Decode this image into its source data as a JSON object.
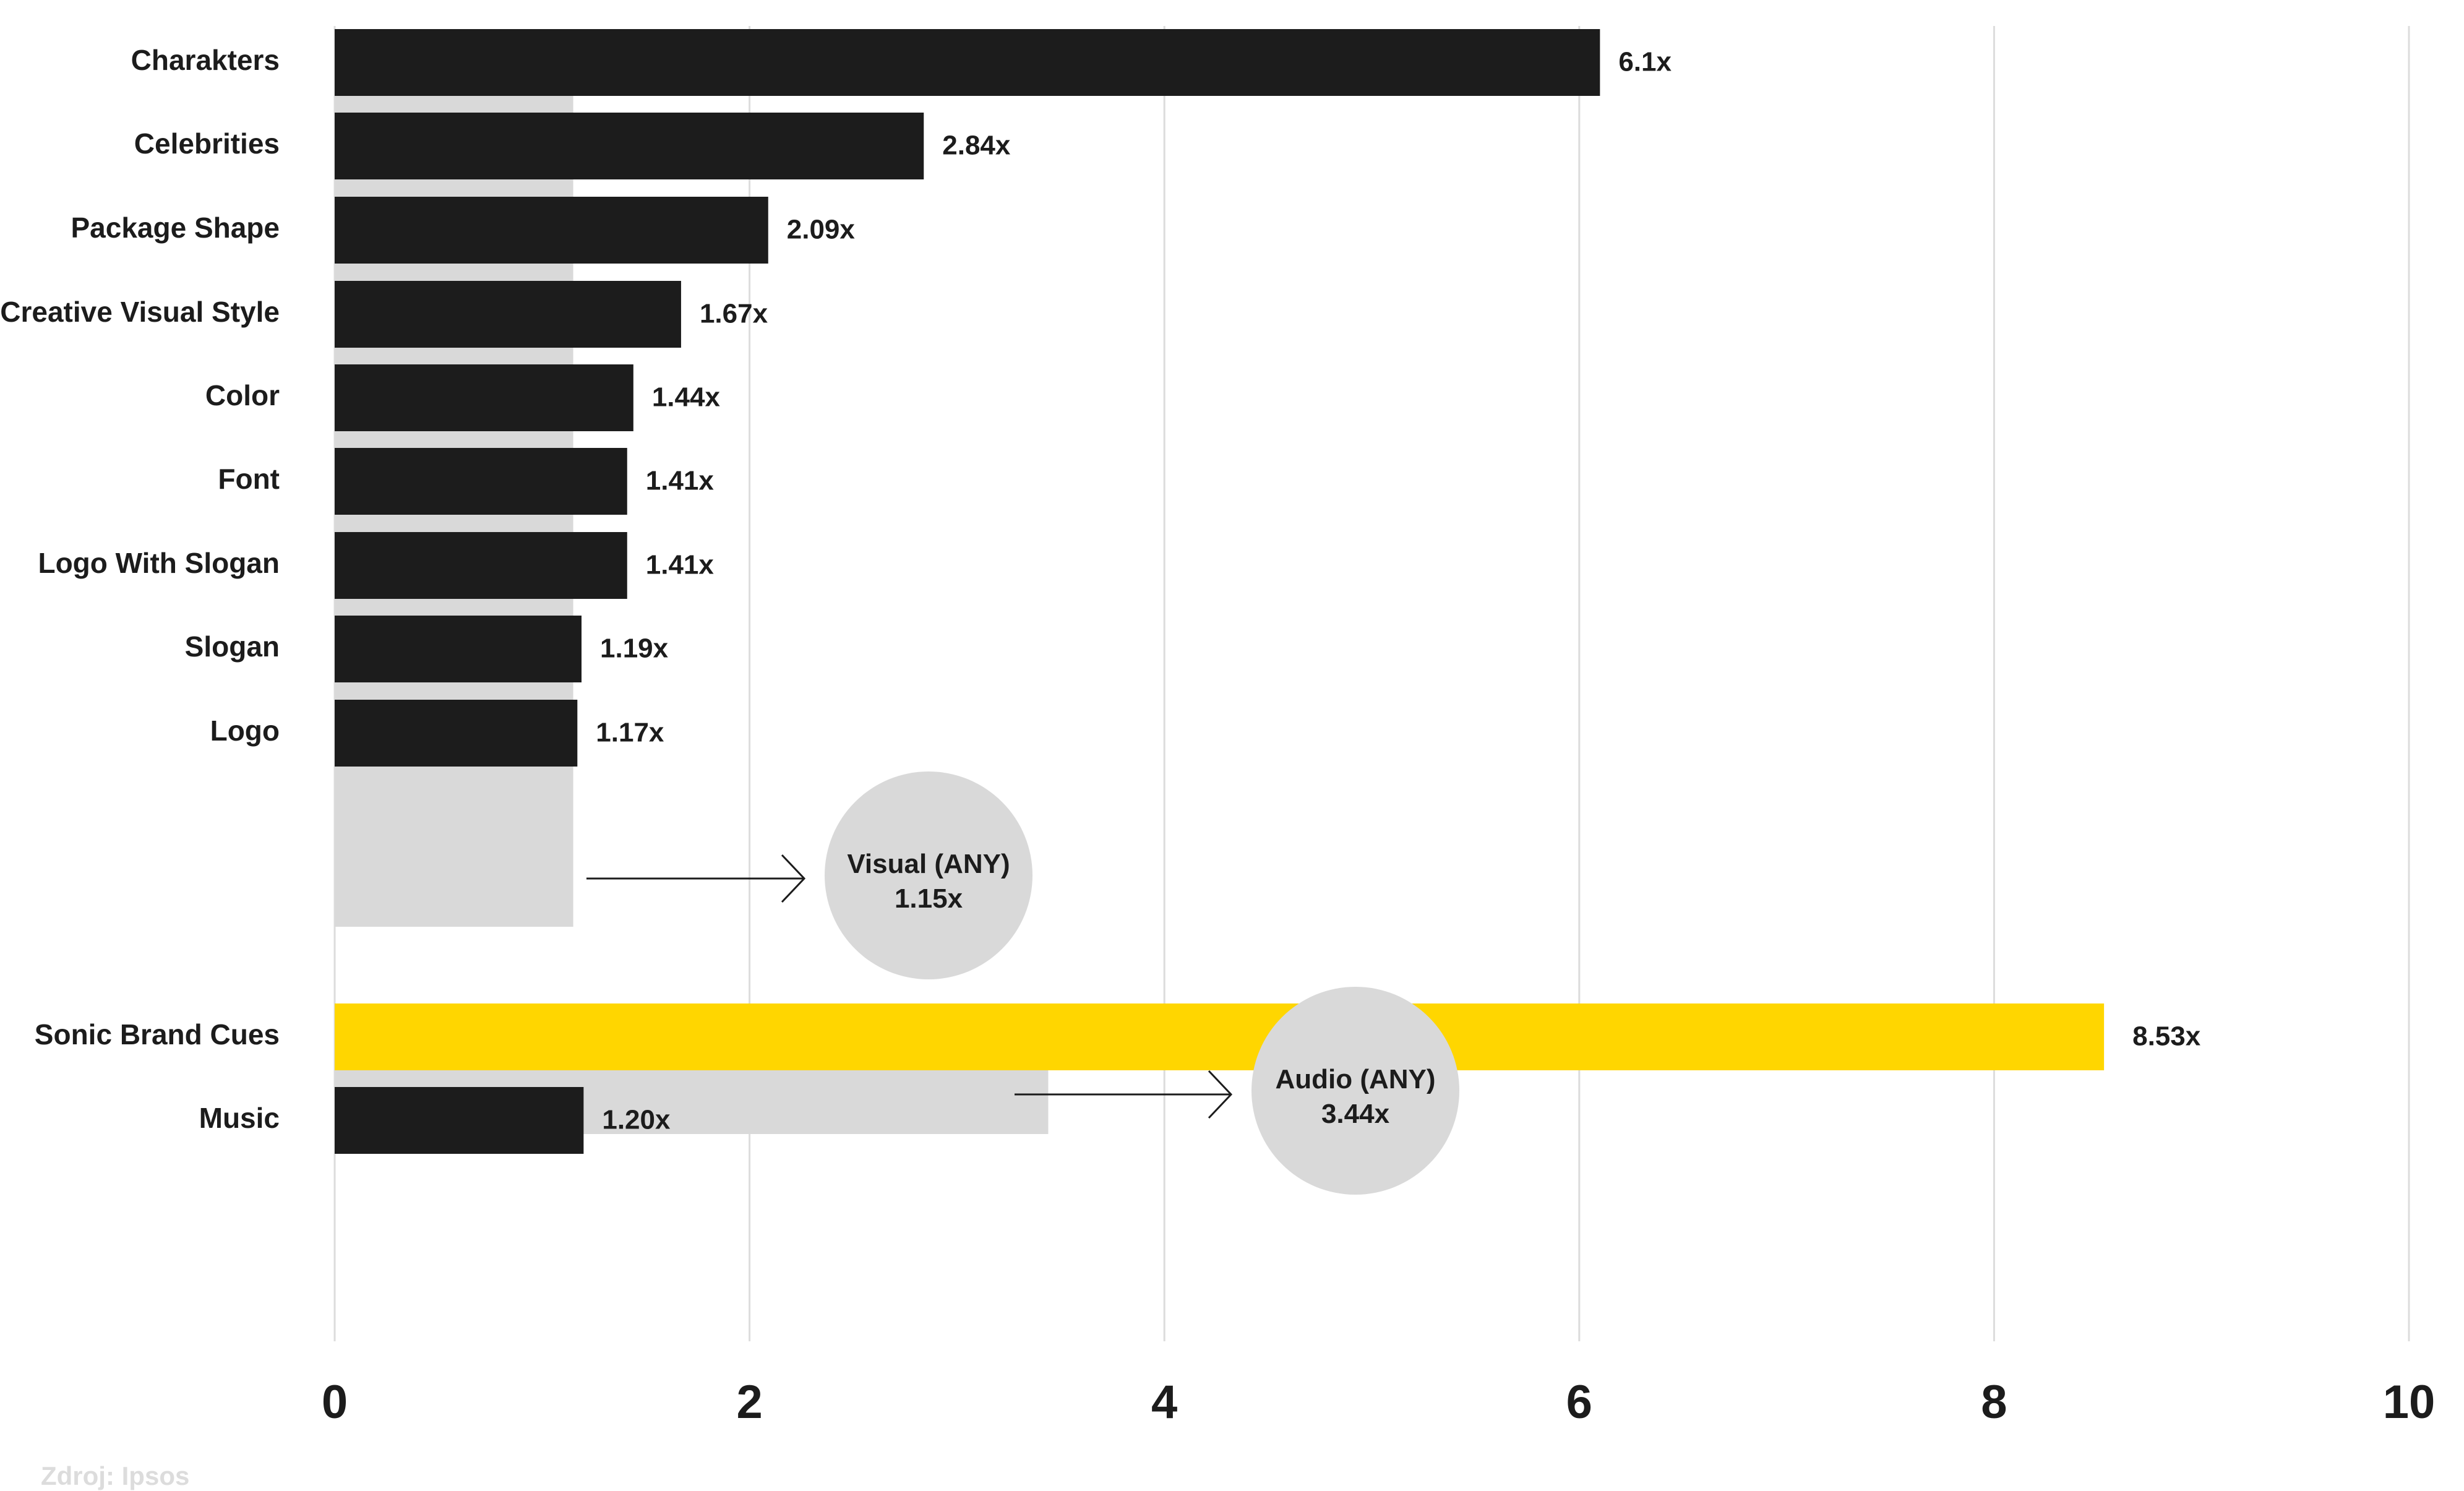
{
  "chart_data": {
    "type": "bar",
    "orientation": "horizontal",
    "xlim": [
      0,
      10
    ],
    "x_ticks": [
      "0",
      "2",
      "4",
      "6",
      "8",
      "10"
    ],
    "grid": true,
    "categories": [
      "Charakters",
      "Celebrities",
      "Package Shape",
      "Creative Visual Style",
      "Color",
      "Font",
      "Logo With Slogan",
      "Slogan",
      "Logo",
      "Sonic Brand Cues",
      "Music"
    ],
    "values": [
      6.1,
      2.84,
      2.09,
      1.67,
      1.44,
      1.41,
      1.41,
      1.19,
      1.17,
      8.53,
      1.2
    ],
    "value_labels": [
      "6.1x",
      "2.84x",
      "2.09x",
      "1.67x",
      "1.44x",
      "1.41x",
      "1.41x",
      "1.19x",
      "1.17x",
      "8.53x",
      "1.20x"
    ],
    "highlight_category": "Sonic Brand Cues",
    "groups": [
      {
        "label": "Visual (ANY)",
        "value": 1.15,
        "value_label": "1.15x",
        "categories": [
          "Charakters",
          "Celebrities",
          "Package Shape",
          "Creative Visual Style",
          "Color",
          "Font",
          "Logo With Slogan",
          "Slogan",
          "Logo"
        ]
      },
      {
        "label": "Audio (ANY)",
        "value": 3.44,
        "value_label": "3.44x",
        "categories": [
          "Sonic Brand Cues",
          "Music"
        ]
      }
    ],
    "colors": {
      "bar": "#1c1c1c",
      "highlight": "#ffd600",
      "group_bar": "#d9d9d9",
      "bubble": "#d9d9d9",
      "grid": "#dcdcdc",
      "text": "#1c1c1c"
    }
  },
  "source": "Zdroj: Ipsos"
}
